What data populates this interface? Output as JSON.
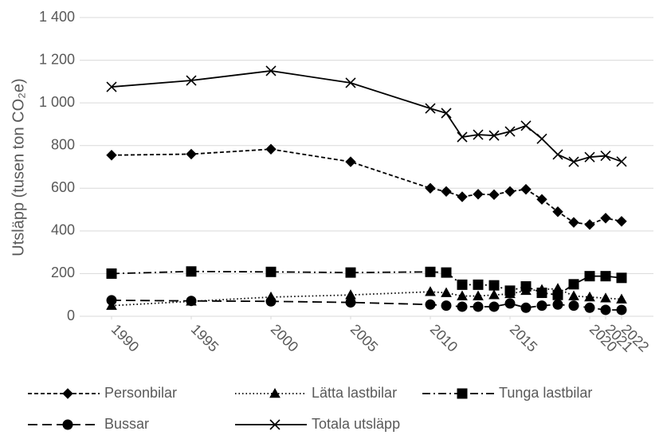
{
  "chart_data": {
    "type": "line",
    "y_label": "Utsläpp (tusen ton CO₂e)",
    "x": [
      1990,
      1995,
      2000,
      2005,
      2010,
      2011,
      2012,
      2013,
      2014,
      2015,
      2016,
      2017,
      2018,
      2019,
      2020,
      2021,
      2022
    ],
    "xlim": [
      1988,
      2024
    ],
    "xticks": [
      1990,
      1995,
      2000,
      2005,
      2010,
      2015,
      2020,
      2021,
      2022
    ],
    "ylim": [
      0,
      1400
    ],
    "yticks": [
      0,
      200,
      400,
      600,
      800,
      {
        "value": 1000,
        "label": "1 000"
      },
      {
        "value": 1200,
        "label": "1 200"
      },
      {
        "value": 1400,
        "label": "1 400"
      }
    ],
    "grid": true,
    "legend": "bottom",
    "series": [
      {
        "name": "Personbilar",
        "color": "#000000",
        "marker": "diamond",
        "line_style": "dashed",
        "values": [
          755,
          760,
          783,
          724,
          600,
          585,
          560,
          572,
          570,
          585,
          595,
          548,
          490,
          440,
          430,
          460,
          445
        ]
      },
      {
        "name": "Lätta lastbilar",
        "color": "#000000",
        "marker": "triangle",
        "line_style": "dotted",
        "values": [
          50,
          70,
          90,
          100,
          115,
          110,
          95,
          95,
          100,
          105,
          120,
          125,
          130,
          95,
          90,
          85,
          80
        ]
      },
      {
        "name": "Tunga lastbilar",
        "color": "#000000",
        "marker": "square",
        "line_style": "dashdot",
        "values": [
          200,
          210,
          208,
          205,
          208,
          205,
          148,
          148,
          145,
          120,
          140,
          110,
          100,
          150,
          188,
          188,
          180
        ]
      },
      {
        "name": "Bussar",
        "color": "#000000",
        "marker": "circle",
        "line_style": "longdash",
        "values": [
          75,
          72,
          70,
          65,
          55,
          50,
          45,
          45,
          45,
          60,
          40,
          50,
          55,
          50,
          40,
          30,
          30
        ]
      },
      {
        "name": "Totala utsläpp",
        "color": "#000000",
        "marker": "x",
        "line_style": "solid",
        "values": [
          1075,
          1105,
          1150,
          1094,
          974,
          952,
          840,
          851,
          847,
          866,
          893,
          832,
          758,
          724,
          746,
          752,
          725
        ]
      }
    ]
  }
}
